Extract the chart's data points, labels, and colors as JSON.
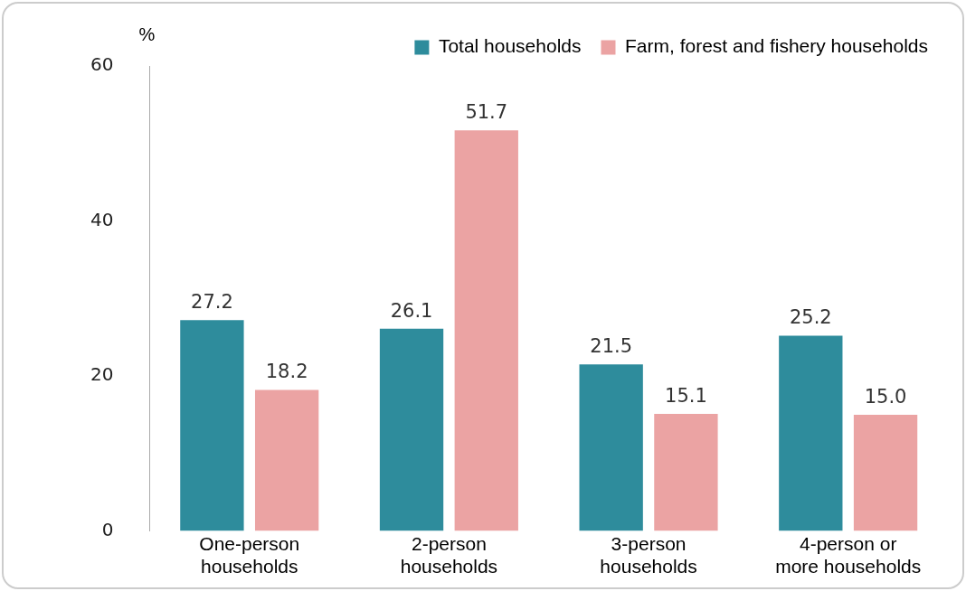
{
  "chart_data": {
    "type": "bar",
    "ylabel": "%",
    "categories": [
      "One-person households",
      "2-person households",
      "3-person households",
      "4-person or more households"
    ],
    "series": [
      {
        "name": "Total households",
        "color": "#2e8c9c",
        "values": [
          27.2,
          26.1,
          21.5,
          25.2
        ],
        "value_labels": [
          "27.2",
          "26.1",
          "21.5",
          "25.2"
        ]
      },
      {
        "name": "Farm, forest and fishery households",
        "color": "#eba3a3",
        "values": [
          18.2,
          51.7,
          15.1,
          15.0
        ],
        "value_labels": [
          "18.2",
          "51.7",
          "15.1",
          "15.0"
        ]
      }
    ],
    "ylim": [
      0,
      60
    ],
    "yticks": [
      0,
      20,
      40,
      60
    ],
    "grid": false,
    "legend": "top right"
  }
}
